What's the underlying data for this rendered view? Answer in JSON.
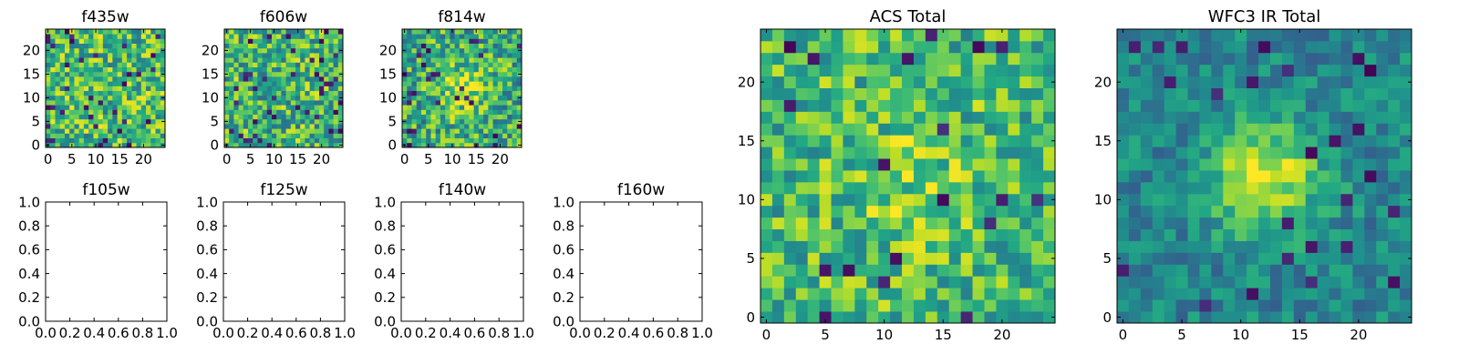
{
  "figure": {
    "background": "#ffffff"
  },
  "chart_data": [
    {
      "type": "heatmap",
      "title": "f435w",
      "xlabel": "",
      "ylabel": "",
      "xticks": [
        "0",
        "5",
        "10",
        "15",
        "20"
      ],
      "yticks": [
        "0",
        "5",
        "10",
        "15",
        "20"
      ],
      "xlim": [
        -0.5,
        24.5
      ],
      "ylim": [
        -0.5,
        24.5
      ],
      "grid_size": [
        25,
        25
      ],
      "colormap": "viridis",
      "pattern": {
        "seed": 11,
        "base": 0.68,
        "noise": 0.3,
        "dark_rate": 0.05,
        "blob": null
      }
    },
    {
      "type": "heatmap",
      "title": "f606w",
      "xlabel": "",
      "ylabel": "",
      "xticks": [
        "0",
        "5",
        "10",
        "15",
        "20"
      ],
      "yticks": [
        "0",
        "5",
        "10",
        "15",
        "20"
      ],
      "xlim": [
        -0.5,
        24.5
      ],
      "ylim": [
        -0.5,
        24.5
      ],
      "grid_size": [
        25,
        25
      ],
      "colormap": "viridis",
      "pattern": {
        "seed": 23,
        "base": 0.66,
        "noise": 0.3,
        "dark_rate": 0.06,
        "blob": null
      }
    },
    {
      "type": "heatmap",
      "title": "f814w",
      "xlabel": "",
      "ylabel": "",
      "xticks": [
        "0",
        "5",
        "10",
        "15",
        "20"
      ],
      "yticks": [
        "0",
        "5",
        "10",
        "15",
        "20"
      ],
      "xlim": [
        -0.5,
        24.5
      ],
      "ylim": [
        -0.5,
        24.5
      ],
      "grid_size": [
        25,
        25
      ],
      "colormap": "viridis",
      "pattern": {
        "seed": 37,
        "base": 0.62,
        "noise": 0.3,
        "dark_rate": 0.05,
        "blob": {
          "x": 12,
          "y": 12,
          "sigma": 3.5,
          "amp": 0.28
        }
      }
    },
    {
      "type": "empty",
      "title": "f105w",
      "xticks": [
        "0.0",
        "0.2",
        "0.4",
        "0.6",
        "0.8",
        "1.0"
      ],
      "yticks": [
        "0.0",
        "0.2",
        "0.4",
        "0.6",
        "0.8",
        "1.0"
      ],
      "xlim": [
        0,
        1
      ],
      "ylim": [
        0,
        1
      ]
    },
    {
      "type": "empty",
      "title": "f125w",
      "xticks": [
        "0.0",
        "0.2",
        "0.4",
        "0.6",
        "0.8",
        "1.0"
      ],
      "yticks": [
        "0.0",
        "0.2",
        "0.4",
        "0.6",
        "0.8",
        "1.0"
      ],
      "xlim": [
        0,
        1
      ],
      "ylim": [
        0,
        1
      ]
    },
    {
      "type": "empty",
      "title": "f140w",
      "xticks": [
        "0.0",
        "0.2",
        "0.4",
        "0.6",
        "0.8",
        "1.0"
      ],
      "yticks": [
        "0.0",
        "0.2",
        "0.4",
        "0.6",
        "0.8",
        "1.0"
      ],
      "xlim": [
        0,
        1
      ],
      "ylim": [
        0,
        1
      ]
    },
    {
      "type": "empty",
      "title": "f160w",
      "xticks": [
        "0.0",
        "0.2",
        "0.4",
        "0.6",
        "0.8",
        "1.0"
      ],
      "yticks": [
        "0.0",
        "0.2",
        "0.4",
        "0.6",
        "0.8",
        "1.0"
      ],
      "xlim": [
        0,
        1
      ],
      "ylim": [
        0,
        1
      ]
    },
    {
      "type": "heatmap",
      "title": "ACS Total",
      "xlabel": "",
      "ylabel": "",
      "xticks": [
        "0",
        "5",
        "10",
        "15",
        "20"
      ],
      "yticks": [
        "0",
        "5",
        "10",
        "15",
        "20"
      ],
      "xlim": [
        -0.5,
        24.5
      ],
      "ylim": [
        -0.5,
        24.5
      ],
      "grid_size": [
        25,
        25
      ],
      "colormap": "viridis",
      "pattern": {
        "seed": 53,
        "base": 0.68,
        "noise": 0.26,
        "dark_rate": 0.04,
        "blob": {
          "x": 13,
          "y": 11,
          "sigma": 4,
          "amp": 0.12
        }
      }
    },
    {
      "type": "heatmap",
      "title": "WFC3 IR Total",
      "xlabel": "",
      "ylabel": "",
      "xticks": [
        "0",
        "5",
        "10",
        "15",
        "20"
      ],
      "yticks": [
        "0",
        "5",
        "10",
        "15",
        "20"
      ],
      "xlim": [
        -0.5,
        24.5
      ],
      "ylim": [
        -0.5,
        24.5
      ],
      "grid_size": [
        25,
        25
      ],
      "colormap": "viridis",
      "pattern": {
        "seed": 71,
        "base": 0.46,
        "noise": 0.16,
        "dark_rate": 0.035,
        "blob": {
          "x": 12,
          "y": 12,
          "sigma": 3.2,
          "amp": 0.5
        }
      }
    }
  ]
}
